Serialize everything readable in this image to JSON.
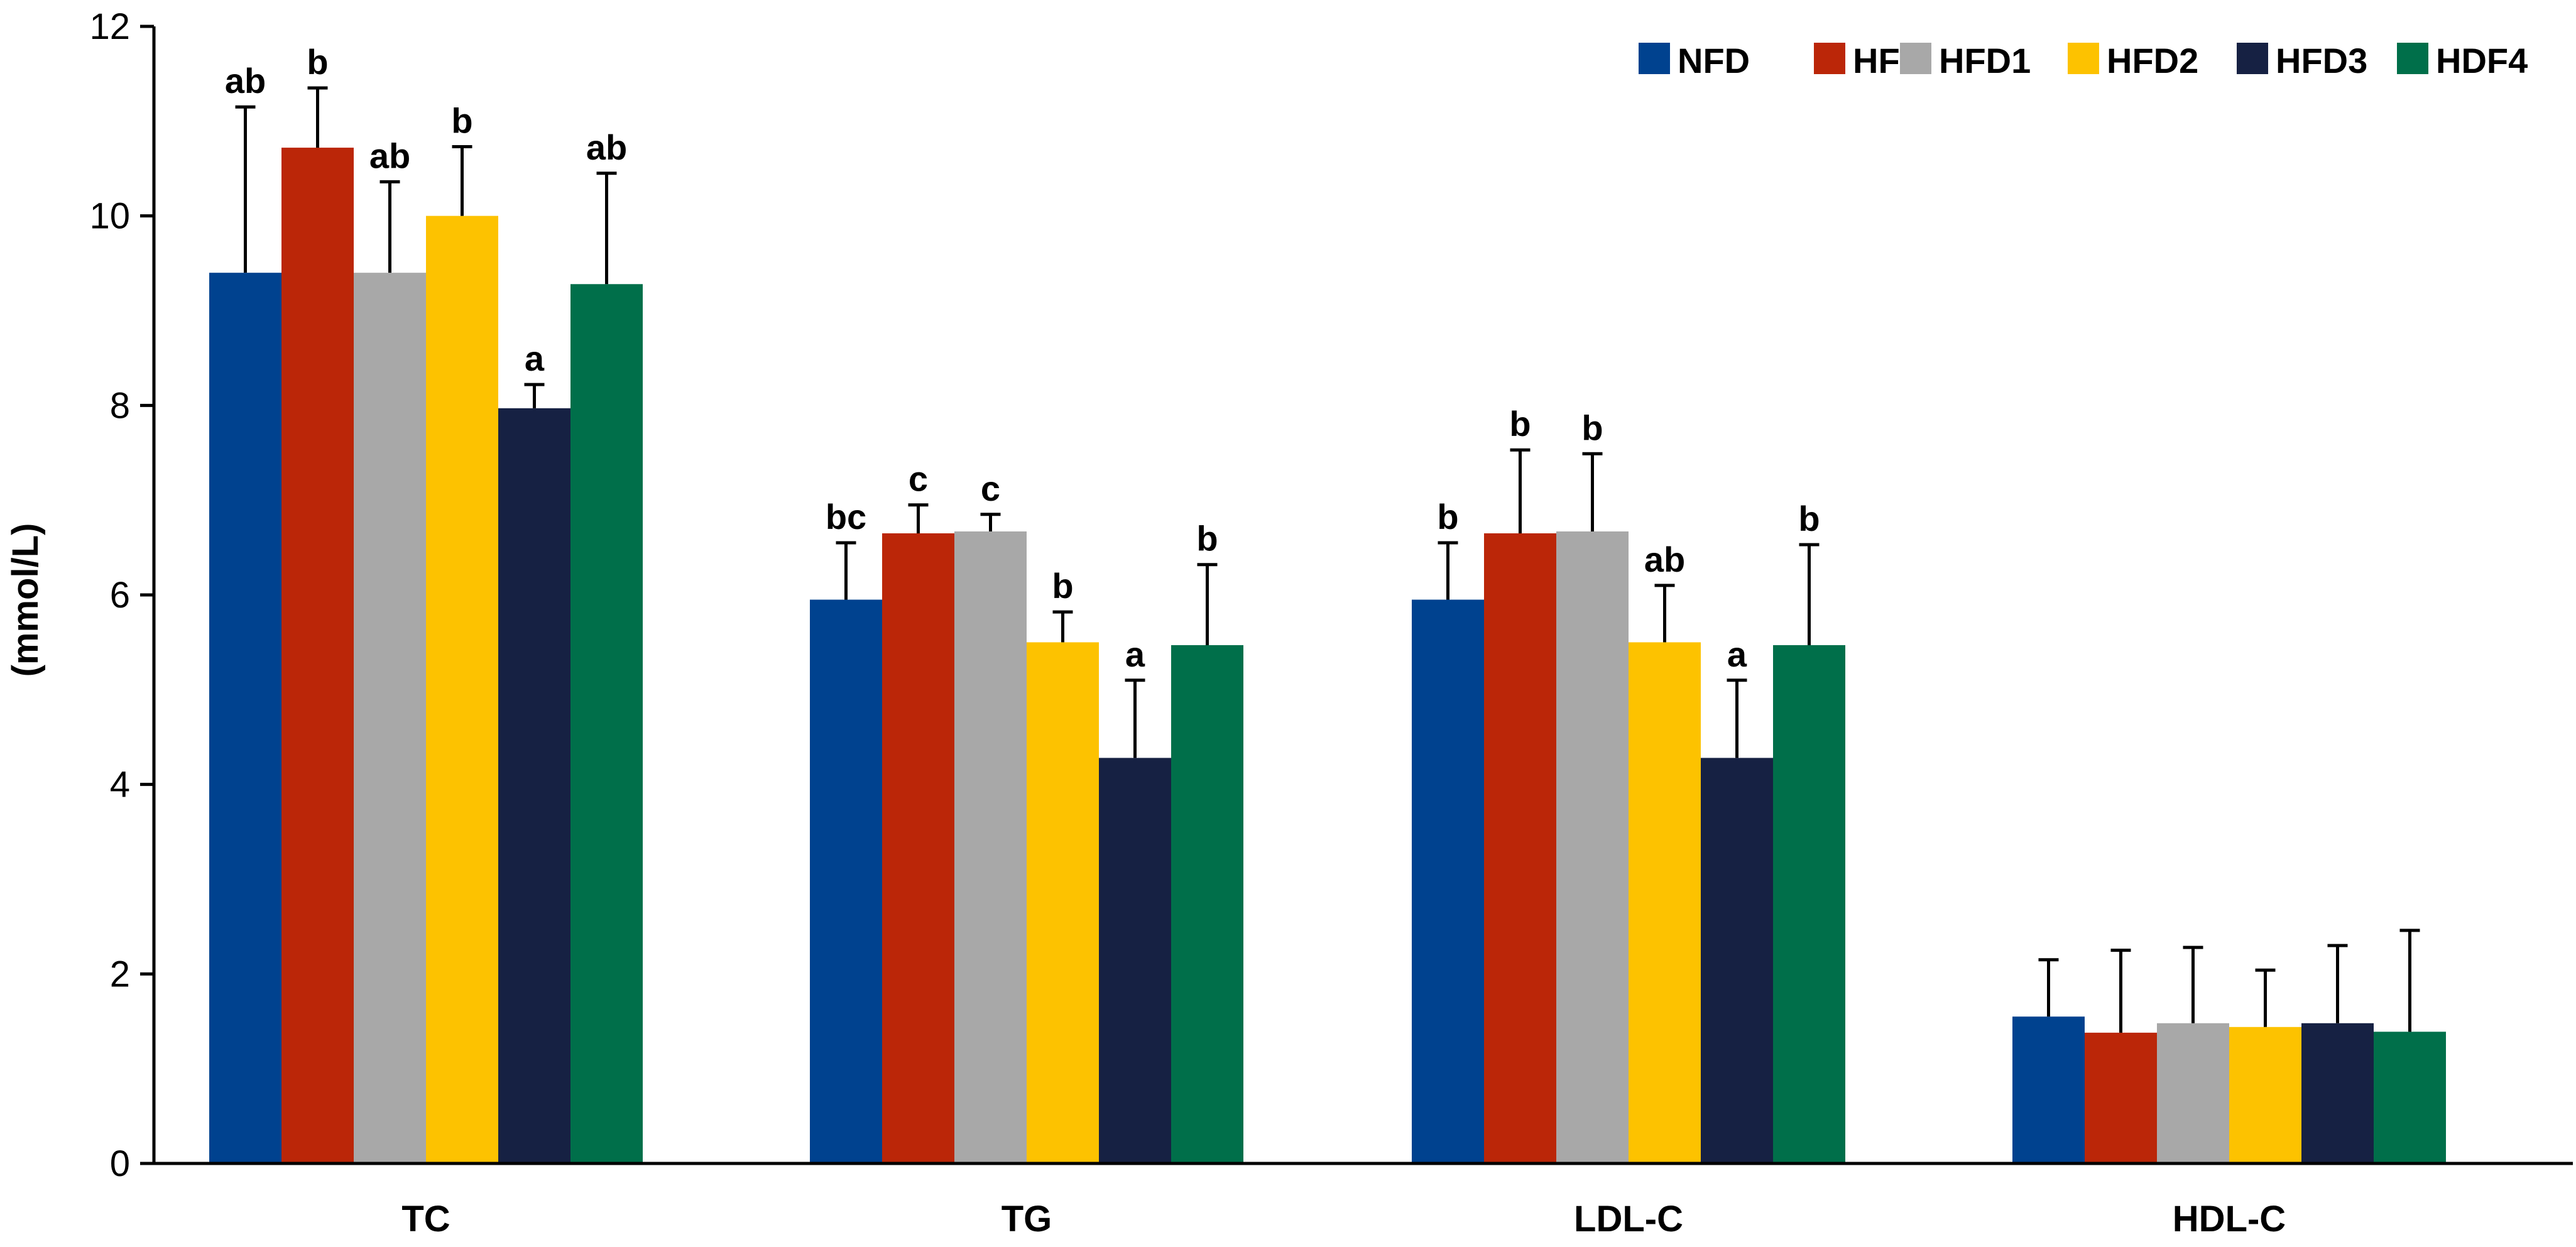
{
  "chart_data": {
    "type": "bar",
    "title": "",
    "xlabel": "",
    "ylabel": "(mmol/L)",
    "ylim": [
      0,
      12
    ],
    "yticks": [
      0,
      2,
      4,
      6,
      8,
      10,
      12
    ],
    "grid": false,
    "legend_position": "top-right",
    "categories": [
      "TC",
      "TG",
      "LDL-C",
      "HDL-C"
    ],
    "series": [
      {
        "name": "NFD",
        "color": "#00428f",
        "values": [
          9.4,
          5.95,
          5.95,
          1.55
        ],
        "errors": [
          1.75,
          0.6,
          0.6,
          0.6
        ],
        "labels": [
          "ab",
          "bc",
          "b",
          ""
        ]
      },
      {
        "name": "HFD",
        "color": "#bb2608",
        "values": [
          10.72,
          6.65,
          6.65,
          1.38
        ],
        "errors": [
          0.63,
          0.3,
          0.88,
          0.87
        ],
        "labels": [
          "b",
          "c",
          "b",
          ""
        ]
      },
      {
        "name": "HFD1",
        "color": "#a8a8a8",
        "values": [
          9.4,
          6.67,
          6.67,
          1.48
        ],
        "errors": [
          0.96,
          0.18,
          0.82,
          0.8
        ],
        "labels": [
          "ab",
          "c",
          "b",
          ""
        ]
      },
      {
        "name": "HFD2",
        "color": "#fdc200",
        "values": [
          10.0,
          5.5,
          5.5,
          1.44
        ],
        "errors": [
          0.73,
          0.32,
          0.6,
          0.6
        ],
        "labels": [
          "b",
          "b",
          "ab",
          ""
        ]
      },
      {
        "name": "HFD3",
        "color": "#162143",
        "values": [
          7.97,
          4.28,
          4.28,
          1.48
        ],
        "errors": [
          0.25,
          0.82,
          0.82,
          0.82
        ],
        "labels": [
          "a",
          "a",
          "a",
          ""
        ]
      },
      {
        "name": "HDF4",
        "color": "#006f4a",
        "values": [
          9.28,
          5.47,
          5.47,
          1.39
        ],
        "errors": [
          1.17,
          0.85,
          1.06,
          1.07
        ],
        "labels": [
          "ab",
          "b",
          "b",
          ""
        ]
      }
    ]
  }
}
